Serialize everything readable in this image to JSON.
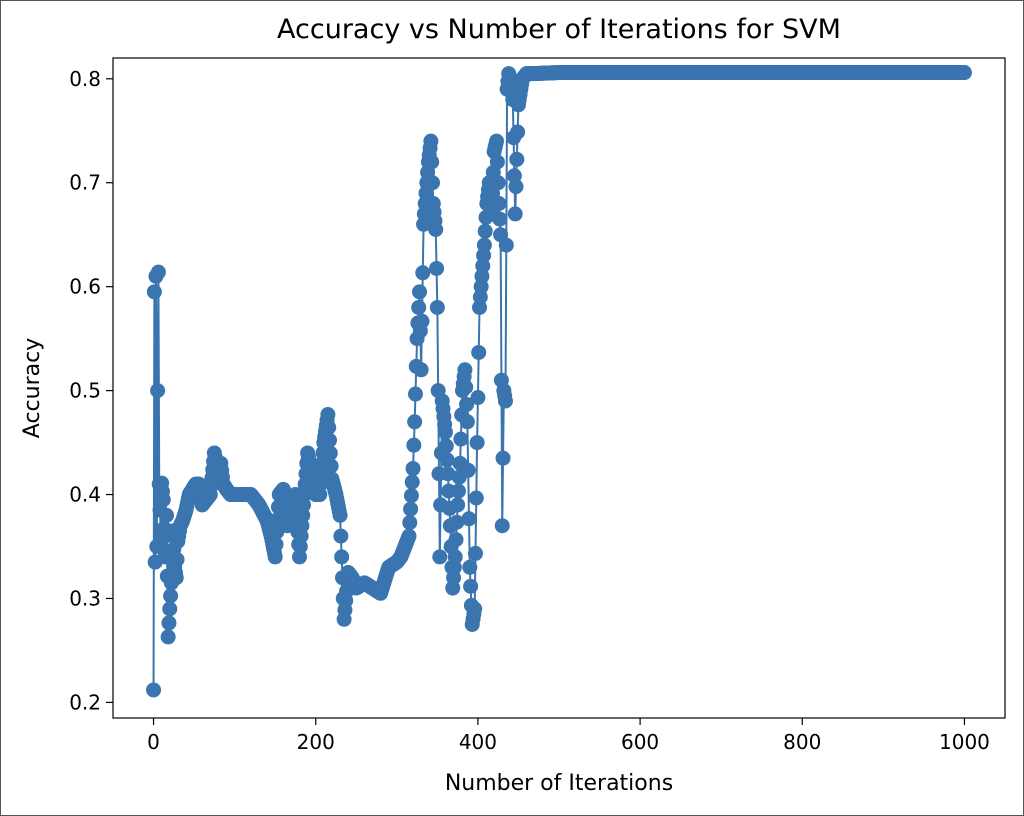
{
  "chart_data": {
    "type": "line",
    "title": "Accuracy vs Number of Iterations for SVM",
    "xlabel": "Number of Iterations",
    "ylabel": "Accuracy",
    "xlim": [
      -50,
      1050
    ],
    "ylim": [
      0.185,
      0.82
    ],
    "xticks": [
      0,
      200,
      400,
      600,
      800,
      1000
    ],
    "yticks": [
      0.2,
      0.3,
      0.4,
      0.5,
      0.6,
      0.7,
      0.8
    ],
    "xtick_labels": [
      "0",
      "200",
      "400",
      "600",
      "800",
      "1000"
    ],
    "ytick_labels": [
      "0.2",
      "0.3",
      "0.4",
      "0.5",
      "0.6",
      "0.7",
      "0.8"
    ],
    "grid": false,
    "marker": "circle",
    "color": "#3a75b0",
    "series": [
      {
        "x": [
          0,
          1,
          2,
          3,
          4,
          5,
          6,
          7,
          8,
          9,
          10,
          12,
          14,
          16,
          18,
          20,
          22,
          24,
          26,
          28,
          30,
          33,
          36,
          40,
          44,
          48,
          52,
          56,
          60,
          65,
          70,
          75,
          80,
          83,
          86,
          90,
          95,
          100,
          110,
          120,
          130,
          140,
          145,
          150,
          155,
          160,
          165,
          170,
          175,
          180,
          185,
          190,
          195,
          200,
          205,
          210,
          215,
          220,
          225,
          230,
          235,
          240,
          245,
          250,
          260,
          270,
          280,
          290,
          300,
          305,
          310,
          315,
          320,
          322,
          325,
          328,
          330,
          333,
          336,
          339,
          342,
          345,
          348,
          350,
          353,
          356,
          360,
          363,
          366,
          369,
          372,
          375,
          378,
          381,
          384,
          387,
          390,
          393,
          396,
          399,
          402,
          405,
          408,
          411,
          414,
          417,
          420,
          423,
          426,
          428,
          430,
          432,
          434,
          436,
          438,
          440,
          443,
          446,
          450,
          455,
          460,
          470,
          500,
          550,
          600,
          650,
          700,
          750,
          800,
          850,
          900,
          950,
          1000
        ],
        "y": [
          0.212,
          0.595,
          0.335,
          0.61,
          0.35,
          0.5,
          0.614,
          0.41,
          0.385,
          0.36,
          0.411,
          0.395,
          0.34,
          0.38,
          0.263,
          0.29,
          0.315,
          0.365,
          0.33,
          0.32,
          0.355,
          0.37,
          0.375,
          0.385,
          0.4,
          0.405,
          0.41,
          0.41,
          0.39,
          0.395,
          0.4,
          0.44,
          0.42,
          0.43,
          0.41,
          0.405,
          0.4,
          0.4,
          0.4,
          0.4,
          0.39,
          0.375,
          0.36,
          0.34,
          0.4,
          0.405,
          0.37,
          0.38,
          0.4,
          0.34,
          0.39,
          0.44,
          0.42,
          0.4,
          0.4,
          0.45,
          0.477,
          0.415,
          0.4,
          0.38,
          0.28,
          0.325,
          0.32,
          0.31,
          0.315,
          0.31,
          0.305,
          0.33,
          0.335,
          0.34,
          0.35,
          0.36,
          0.425,
          0.47,
          0.55,
          0.595,
          0.52,
          0.66,
          0.69,
          0.72,
          0.74,
          0.68,
          0.655,
          0.58,
          0.34,
          0.49,
          0.46,
          0.42,
          0.37,
          0.31,
          0.34,
          0.39,
          0.43,
          0.5,
          0.52,
          0.47,
          0.33,
          0.275,
          0.29,
          0.45,
          0.58,
          0.61,
          0.64,
          0.68,
          0.7,
          0.67,
          0.73,
          0.74,
          0.68,
          0.65,
          0.37,
          0.5,
          0.49,
          0.79,
          0.805,
          0.8,
          0.78,
          0.67,
          0.775,
          0.8,
          0.805,
          0.805,
          0.806,
          0.806,
          0.806,
          0.806,
          0.806,
          0.806,
          0.806,
          0.806,
          0.806,
          0.806,
          0.806
        ]
      }
    ]
  }
}
